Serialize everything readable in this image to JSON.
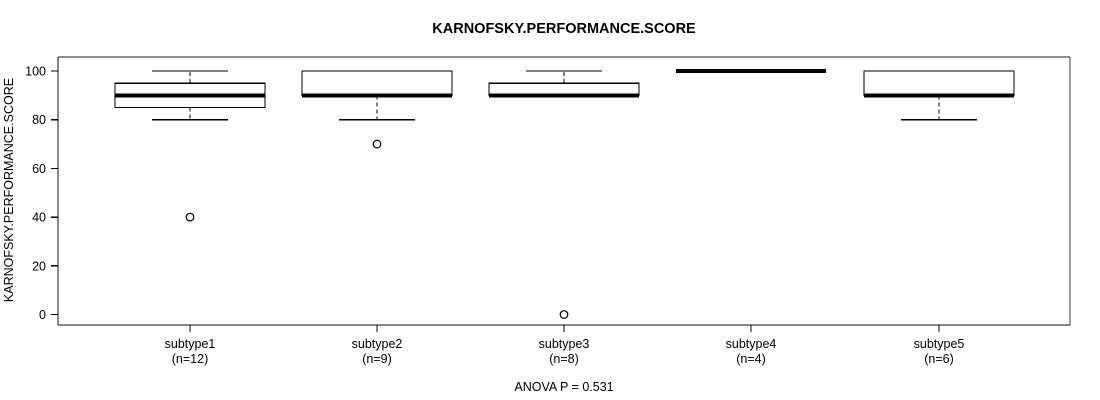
{
  "chart_data": {
    "type": "boxplot",
    "title": "KARNOFSKY.PERFORMANCE.SCORE",
    "ylabel": "KARNOFSKY.PERFORMANCE.SCORE",
    "footer_note": "ANOVA P = 0.531",
    "anova_p": "0.531",
    "yticks": [
      0,
      20,
      40,
      60,
      80,
      100
    ],
    "ylim": [
      0,
      100
    ],
    "grid": false,
    "legend": false,
    "colors": {
      "box_fill": "#ffffff",
      "box_stroke": "#000000",
      "median": "#000000",
      "frame_top": "#8e8e8e",
      "frame_other": "#111111"
    },
    "groups": [
      {
        "label": "subtype1",
        "sublabel": "(n=12)",
        "n": 12,
        "whisker_low": 80,
        "q1": 85,
        "median": 90,
        "q3": 95,
        "whisker_high": 100,
        "outliers": [
          40
        ]
      },
      {
        "label": "subtype2",
        "sublabel": "(n=9)",
        "n": 9,
        "whisker_low": 80,
        "q1": 90,
        "median": 90,
        "q3": 100,
        "whisker_high": 100,
        "outliers": [
          70
        ]
      },
      {
        "label": "subtype3",
        "sublabel": "(n=8)",
        "n": 8,
        "whisker_low": 90,
        "q1": 90,
        "median": 90,
        "q3": 95,
        "whisker_high": 100,
        "outliers": [
          0
        ]
      },
      {
        "label": "subtype4",
        "sublabel": "(n=4)",
        "n": 4,
        "whisker_low": 100,
        "q1": 100,
        "median": 100,
        "q3": 100,
        "whisker_high": 100,
        "outliers": []
      },
      {
        "label": "subtype5",
        "sublabel": "(n=6)",
        "n": 6,
        "whisker_low": 80,
        "q1": 90,
        "median": 90,
        "q3": 100,
        "whisker_high": 100,
        "outliers": []
      }
    ]
  }
}
